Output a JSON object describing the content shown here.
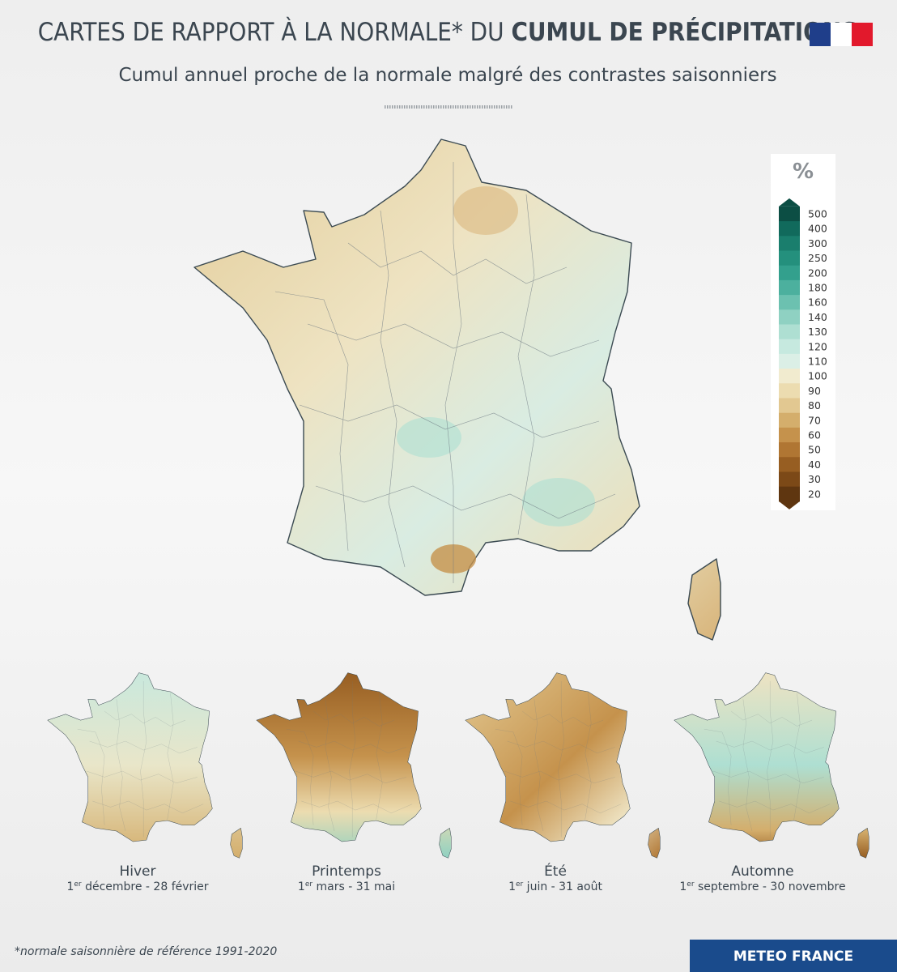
{
  "header": {
    "title_light": "CARTES DE RAPPORT À LA NORMALE* DU ",
    "title_bold": "CUMUL DE PRÉCIPITATIONS",
    "subtitle": "Cumul annuel proche de la normale malgré des contrastes saisonniers"
  },
  "legend": {
    "unit": "%",
    "ticks": [
      500,
      400,
      300,
      250,
      200,
      180,
      160,
      140,
      130,
      120,
      110,
      100,
      90,
      80,
      70,
      60,
      50,
      40,
      30,
      20
    ],
    "colors": [
      "#0c4e44",
      "#116a5c",
      "#1a7e6d",
      "#24907d",
      "#33a08d",
      "#4cb09e",
      "#6cc1b0",
      "#8fd1c2",
      "#aedfd2",
      "#c6e9df",
      "#dbefe6",
      "#f1ebcf",
      "#ecdcb0",
      "#e2c891",
      "#d4ae6c",
      "#c5924c",
      "#b07633",
      "#975e22",
      "#7c4917",
      "#5f3610"
    ]
  },
  "seasons": [
    {
      "name": "Hiver",
      "day_start": "1",
      "ordinal": "er",
      "period": " décembre - 28 février"
    },
    {
      "name": "Printemps",
      "day_start": "1",
      "ordinal": "er",
      "period": " mars - 31 mai"
    },
    {
      "name": "Été",
      "day_start": "1",
      "ordinal": "er",
      "period": " juin - 31 août"
    },
    {
      "name": "Automne",
      "day_start": "1",
      "ordinal": "er",
      "period": " septembre - 30 novembre"
    }
  ],
  "footnote": "*normale saisonnière de référence 1991-2020",
  "logo": "METEO FRANCE"
}
